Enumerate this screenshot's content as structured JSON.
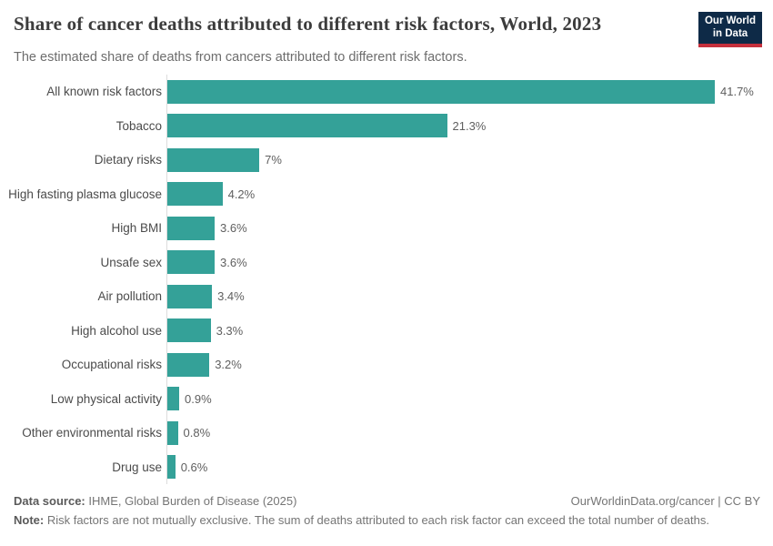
{
  "header": {
    "title": "Share of cancer deaths attributed to different risk factors, World, 2023",
    "subtitle": "The estimated share of deaths from cancers attributed to different risk factors.",
    "logo": {
      "line1": "Our World",
      "line2": "in Data",
      "bg_color": "#0e2a47",
      "accent_color": "#c5303c"
    }
  },
  "chart_data": {
    "type": "bar",
    "orientation": "horizontal",
    "title": "Share of cancer deaths attributed to different risk factors, World, 2023",
    "xlabel": "",
    "ylabel": "",
    "xlim": [
      0,
      41.7
    ],
    "grid": false,
    "legend": false,
    "bar_color": "#34a198",
    "categories": [
      "All known risk factors",
      "Tobacco",
      "Dietary risks",
      "High fasting plasma glucose",
      "High BMI",
      "Unsafe sex",
      "Air pollution",
      "High alcohol use",
      "Occupational risks",
      "Low physical activity",
      "Other environmental risks",
      "Drug use"
    ],
    "values": [
      41.7,
      21.3,
      7,
      4.2,
      3.6,
      3.6,
      3.4,
      3.3,
      3.2,
      0.9,
      0.8,
      0.6
    ],
    "value_labels": [
      "41.7%",
      "21.3%",
      "7%",
      "4.2%",
      "3.6%",
      "3.6%",
      "3.4%",
      "3.3%",
      "3.2%",
      "0.9%",
      "0.8%",
      "0.6%"
    ]
  },
  "footer": {
    "datasource_label": "Data source:",
    "datasource_value": " IHME, Global Burden of Disease (2025)",
    "attribution": "OurWorldinData.org/cancer | CC BY",
    "note_label": "Note:",
    "note_value": " Risk factors are not mutually exclusive. The sum of deaths attributed to each risk factor can exceed the total number of deaths."
  }
}
